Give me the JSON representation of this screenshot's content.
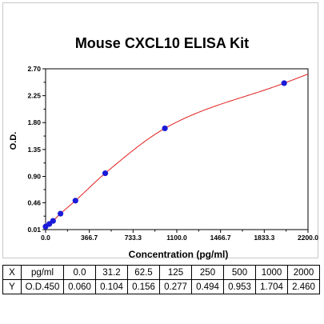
{
  "chart_data": {
    "type": "scatter",
    "title": "Mouse CXCL10 ELISA Kit",
    "xlabel": "Concentration (pg/ml)",
    "ylabel": "O.D.",
    "xlim": [
      0.0,
      2200.0
    ],
    "ylim": [
      0.01,
      2.7
    ],
    "xticks": [
      "0.0",
      "366.7",
      "733.3",
      "1100.0",
      "1466.7",
      "1833.3",
      "2200.0"
    ],
    "yticks": [
      "0.01",
      "0.46",
      "0.90",
      "1.35",
      "1.80",
      "2.25",
      "2.70"
    ],
    "grid": false,
    "series": [
      {
        "x": [
          0,
          31.2,
          62.5,
          125,
          250,
          500,
          1000,
          2000
        ],
        "y": [
          0.06,
          0.104,
          0.156,
          0.277,
          0.494,
          0.953,
          1.704,
          2.46
        ]
      }
    ],
    "point_color": "#1a1ad8",
    "curve_color": "#e02020"
  },
  "table": {
    "x_label": "X",
    "y_label": "Y",
    "x_unit": "pg/ml",
    "y_unit": "O.D.450",
    "x_values": [
      "0.0",
      "31.2",
      "62.5",
      "125",
      "250",
      "500",
      "1000",
      "2000"
    ],
    "y_values": [
      "0.060",
      "0.104",
      "0.156",
      "0.277",
      "0.494",
      "0.953",
      "1.704",
      "2.460"
    ]
  }
}
